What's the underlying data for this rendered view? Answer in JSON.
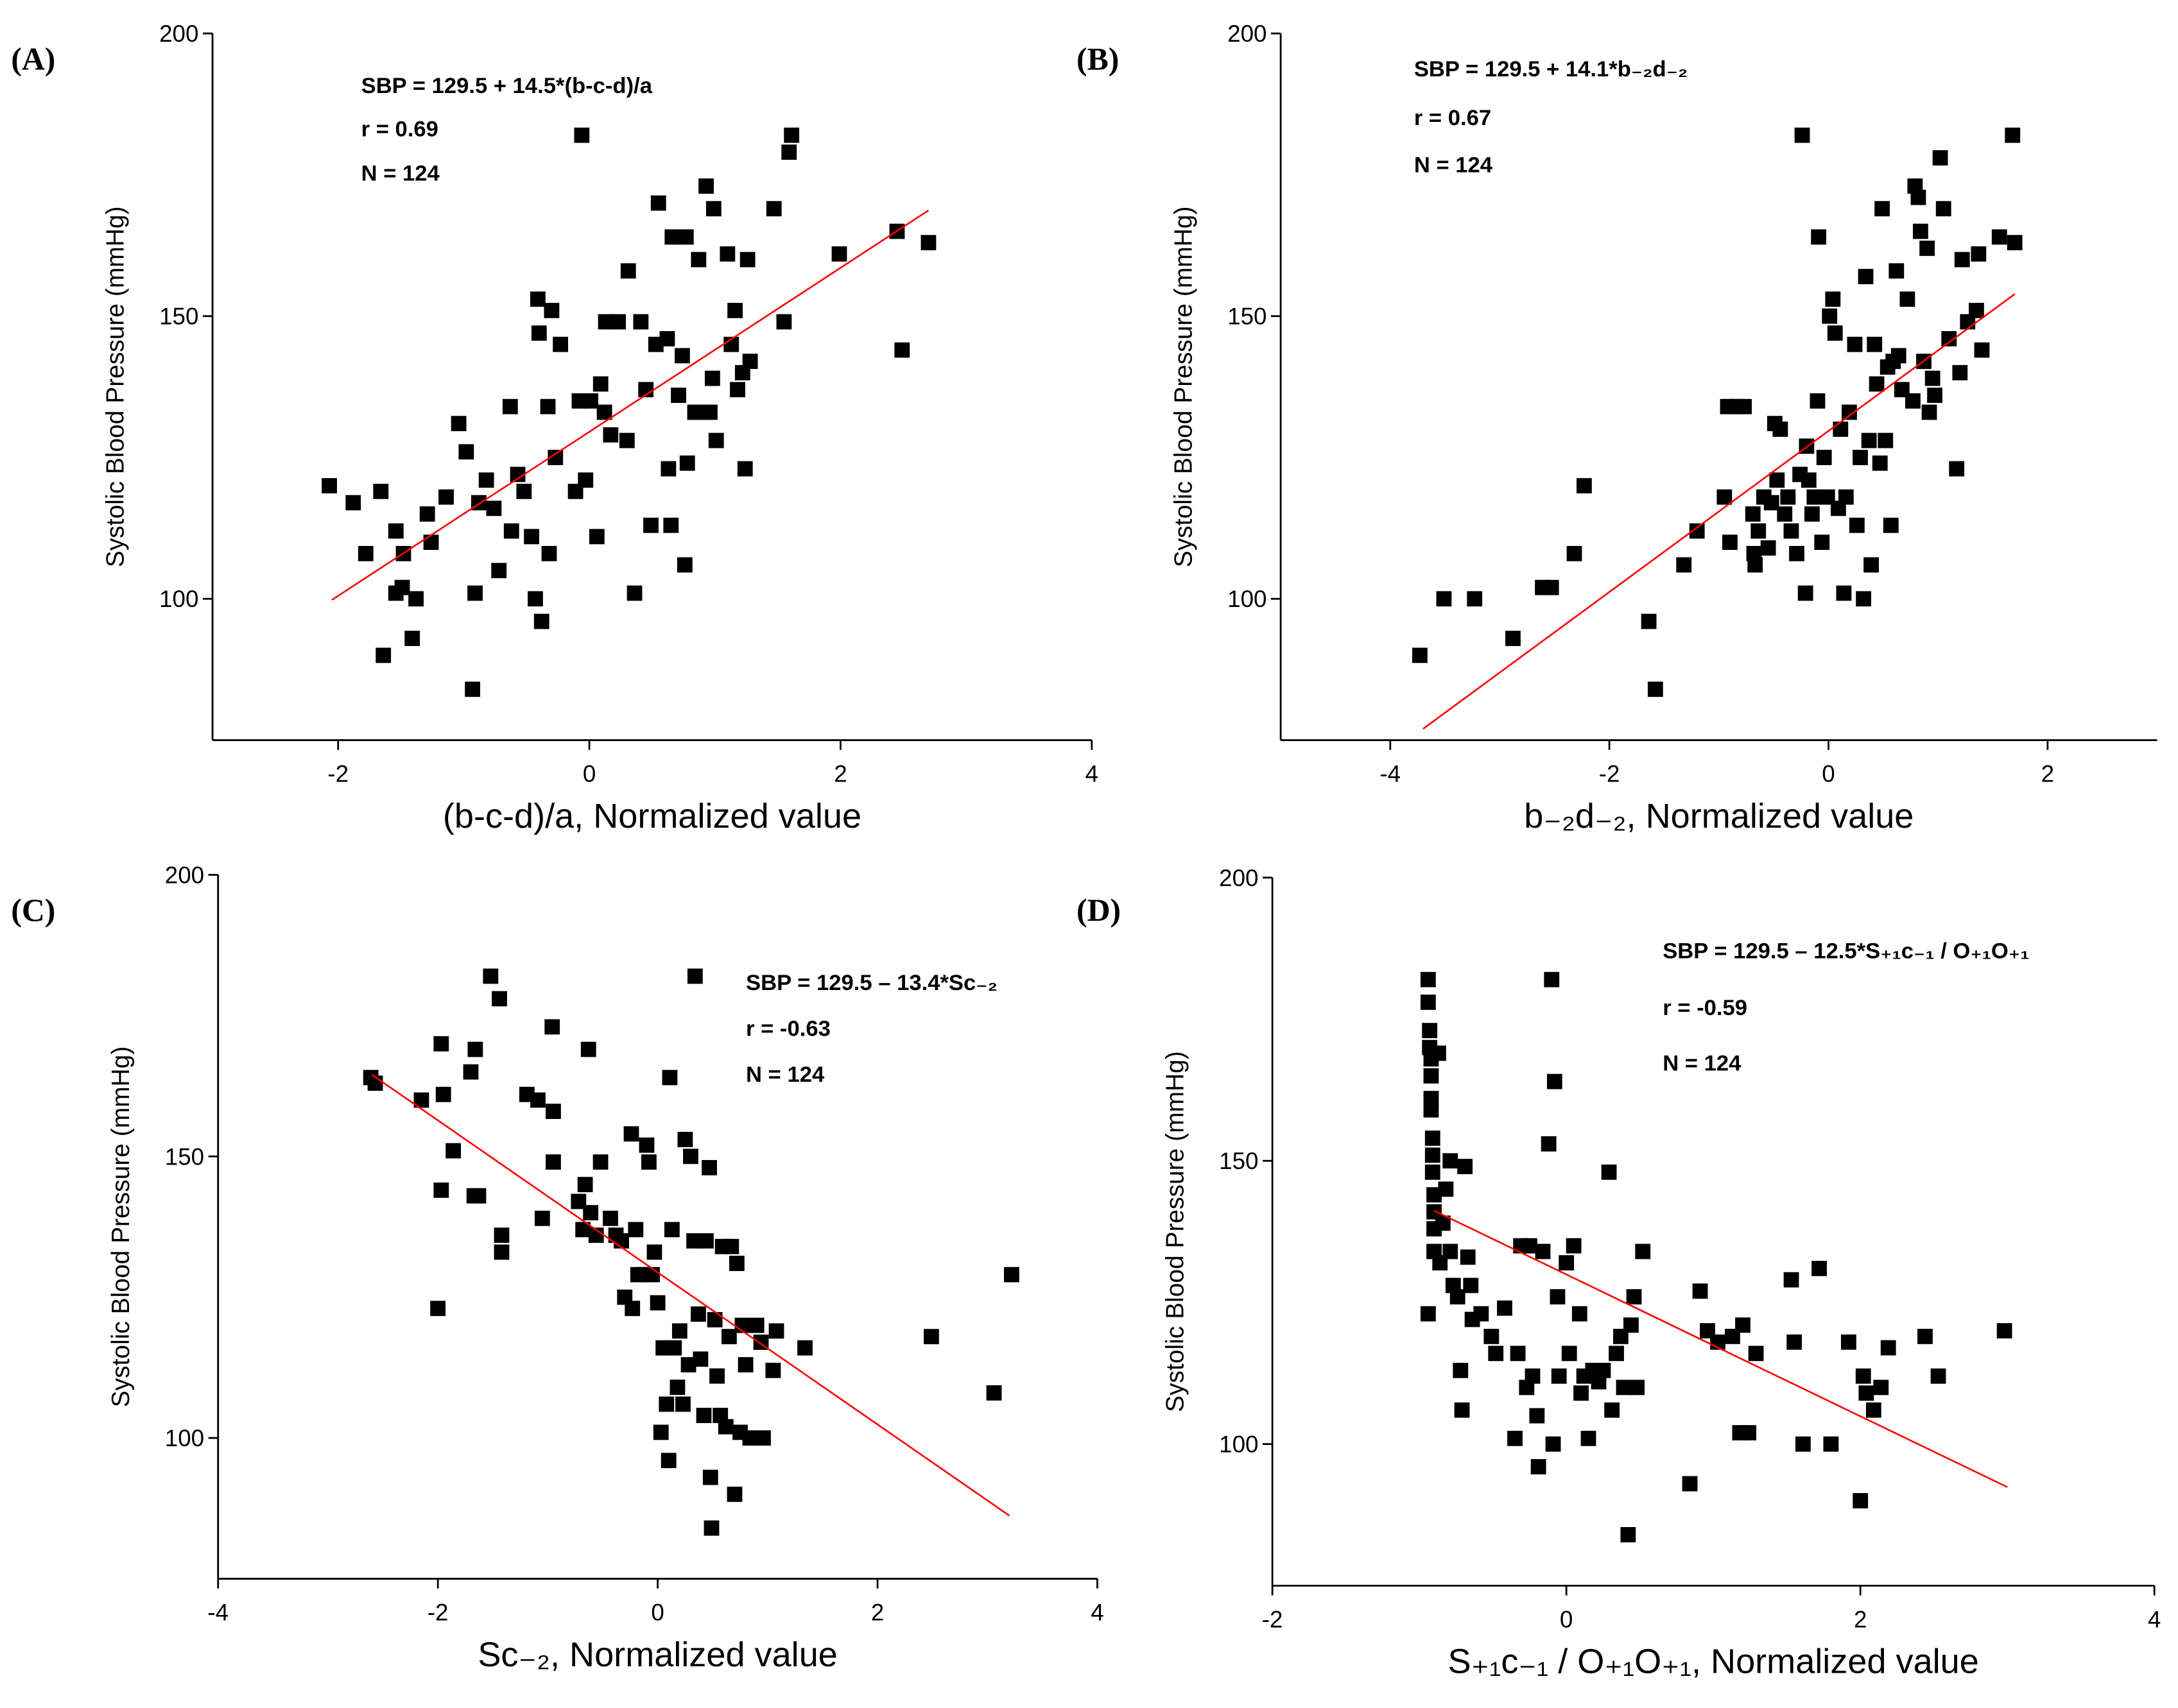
{
  "chart_data": [
    {
      "type": "scatter",
      "label": "(A)",
      "annotations": [
        "SBP = 129.5 + 14.5*(b-c-d)/a",
        "r = 0.69",
        "N = 124"
      ],
      "xlabel": "(b-c-d)/a, Normalized value",
      "ylabel": "Systolic Blood Pressure (mmHg)",
      "xlim": [
        -3,
        4
      ],
      "ylim": [
        75,
        200
      ],
      "xticks": [
        -2,
        0,
        2,
        4
      ],
      "yticks": [
        100,
        150,
        200
      ],
      "color": "#000000",
      "fit_line": {
        "x": [
          -2.05,
          2.7
        ],
        "y": [
          99.8,
          168.7
        ],
        "color": "#ff0000"
      },
      "x": [
        -2.07,
        -1.88,
        -1.78,
        -1.66,
        -1.64,
        -1.54,
        -1.48,
        -1.49,
        -1.54,
        -1.41,
        -1.38,
        -1.29,
        -1.26,
        -1.14,
        -1.04,
        -0.98,
        -0.93,
        -0.91,
        -0.88,
        -0.82,
        -0.76,
        -0.72,
        -0.63,
        -0.62,
        -0.57,
        -0.52,
        -0.46,
        -0.43,
        -0.41,
        -0.4,
        -0.38,
        -0.33,
        -0.32,
        -0.3,
        -0.27,
        -0.23,
        -0.11,
        -0.08,
        -0.06,
        -0.03,
        0.01,
        0.06,
        0.09,
        0.12,
        0.13,
        0.17,
        0.23,
        0.3,
        0.31,
        0.36,
        0.41,
        0.45,
        0.49,
        0.53,
        0.55,
        0.62,
        0.63,
        0.65,
        0.66,
        0.71,
        0.74,
        0.76,
        0.77,
        0.78,
        0.84,
        0.87,
        0.93,
        0.96,
        0.98,
        0.99,
        1.01,
        1.1,
        1.13,
        1.16,
        1.18,
        1.22,
        1.24,
        1.26,
        1.28,
        1.47,
        1.55,
        1.59,
        1.61,
        1.99,
        2.45,
        2.49,
        2.7
      ],
      "y": [
        120,
        117,
        108,
        119,
        90,
        112,
        108,
        102,
        101,
        93,
        100,
        115,
        110,
        118,
        131,
        126,
        84,
        101,
        117,
        121,
        116,
        105,
        134,
        112,
        122,
        119,
        111,
        100,
        153,
        147,
        96,
        134,
        108,
        151,
        125,
        145,
        119,
        135,
        182,
        121,
        135,
        111,
        138,
        133,
        149,
        129,
        149,
        128,
        158,
        101,
        149,
        137,
        113,
        145,
        170,
        146,
        123,
        113,
        164,
        136,
        143,
        106,
        164,
        124,
        133,
        160,
        173,
        133,
        139,
        169,
        128,
        161,
        145,
        151,
        137,
        140,
        123,
        160,
        142,
        169,
        149,
        179,
        182,
        161,
        165,
        144,
        163
      ]
    },
    {
      "type": "scatter",
      "label": "(B)",
      "annotations": [
        "SBP = 129.5 + 14.1*b₋₂d₋₂",
        "r = 0.67",
        "N = 124"
      ],
      "xlabel": "b₋₂d₋₂,  Normalized value",
      "ylabel": "Systolic Blood Pressure (mmHg)",
      "xlim": [
        -5,
        3
      ],
      "ylim": [
        75,
        200
      ],
      "xticks": [
        -4,
        -2,
        0,
        2
      ],
      "yticks": [
        100,
        150,
        200
      ],
      "color": "#000000",
      "fit_line": {
        "x": [
          -3.7,
          1.7
        ],
        "y": [
          77,
          153.9
        ],
        "color": "#ff0000"
      },
      "x": [
        -3.73,
        -3.51,
        -3.23,
        -2.88,
        -2.61,
        -2.53,
        -2.32,
        -2.23,
        -1.64,
        -1.58,
        -1.32,
        -1.2,
        -0.95,
        -0.92,
        -0.84,
        -0.77,
        -0.9,
        -0.69,
        -0.68,
        -0.67,
        -0.64,
        -0.59,
        -0.55,
        -0.52,
        -0.49,
        -0.47,
        -0.44,
        -0.4,
        -0.37,
        -0.34,
        -0.29,
        -0.26,
        -0.24,
        -0.21,
        -0.2,
        -0.18,
        -0.15,
        -0.13,
        -0.1,
        -0.09,
        -0.06,
        -0.04,
        -0.01,
        0.01,
        0.04,
        0.06,
        0.09,
        0.11,
        0.14,
        0.16,
        0.19,
        0.24,
        0.26,
        0.29,
        0.32,
        0.34,
        0.37,
        0.39,
        0.42,
        0.44,
        0.47,
        0.49,
        0.52,
        0.54,
        0.57,
        0.59,
        0.62,
        0.64,
        0.67,
        0.72,
        0.77,
        0.79,
        0.82,
        0.84,
        0.87,
        0.9,
        0.92,
        0.95,
        0.97,
        1.02,
        1.05,
        1.1,
        1.17,
        1.2,
        1.22,
        1.27,
        1.35,
        1.37,
        1.4,
        1.56,
        1.68,
        1.7
      ],
      "y": [
        90,
        100,
        100,
        93,
        102,
        102,
        108,
        120,
        96,
        84,
        106,
        112,
        118,
        134,
        134,
        134,
        110,
        115,
        108,
        106,
        112,
        118,
        109,
        117,
        131,
        121,
        130,
        115,
        118,
        112,
        108,
        122,
        182,
        101,
        127,
        121,
        115,
        118,
        135,
        164,
        110,
        125,
        118,
        150,
        153,
        147,
        116,
        130,
        101,
        118,
        133,
        145,
        113,
        125,
        100,
        157,
        128,
        106,
        145,
        138,
        124,
        169,
        128,
        141,
        113,
        142,
        158,
        143,
        137,
        153,
        135,
        173,
        171,
        165,
        142,
        162,
        133,
        139,
        136,
        178,
        169,
        146,
        123,
        140,
        160,
        149,
        151,
        161,
        144,
        164,
        182,
        163
      ]
    },
    {
      "type": "scatter",
      "label": "(C)",
      "annotations": [
        "SBP = 129.5 – 13.4*Sc₋₂",
        "r = -0.63",
        "N = 124"
      ],
      "xlabel": "Sc₋₂,  Normalized value",
      "ylabel": "Systolic Blood Pressure (mmHg)",
      "xlim": [
        -4,
        4
      ],
      "ylim": [
        75,
        200
      ],
      "xticks": [
        -4,
        -2,
        0,
        2,
        4
      ],
      "yticks": [
        100,
        150,
        200
      ],
      "color": "#000000",
      "fit_line": {
        "x": [
          -2.6,
          3.2
        ],
        "y": [
          164.5,
          86.2
        ],
        "color": "#ff0000"
      },
      "x": [
        -2.61,
        -2.57,
        -2.15,
        -1.97,
        -1.95,
        -1.97,
        -2.0,
        -1.86,
        -1.7,
        -1.66,
        -1.67,
        -1.63,
        -1.52,
        -1.44,
        -1.42,
        -1.42,
        -1.19,
        -1.09,
        -1.05,
        -0.96,
        -0.95,
        -0.95,
        -0.72,
        -0.68,
        -0.66,
        -0.63,
        -0.61,
        -0.56,
        -0.52,
        -0.43,
        -0.38,
        -0.33,
        -0.3,
        -0.24,
        -0.23,
        -0.2,
        -0.18,
        -0.13,
        -0.1,
        -0.08,
        -0.05,
        -0.03,
        0,
        0.03,
        0.05,
        0.08,
        0.1,
        0.11,
        0.13,
        0.15,
        0.18,
        0.2,
        0.23,
        0.25,
        0.28,
        0.3,
        0.33,
        0.34,
        0.37,
        0.39,
        0.42,
        0.44,
        0.47,
        0.48,
        0.49,
        0.52,
        0.54,
        0.57,
        0.59,
        0.62,
        0.65,
        0.67,
        0.7,
        0.72,
        0.75,
        0.77,
        0.8,
        0.84,
        0.9,
        0.94,
        0.96,
        1.08,
        1.05,
        1.34,
        2.49,
        3.06,
        3.22
      ],
      "y": [
        164,
        163,
        160,
        170,
        161,
        144,
        123,
        151,
        165,
        169,
        143,
        143,
        182,
        178,
        136,
        133,
        161,
        160,
        139,
        173,
        158,
        149,
        142,
        137,
        145,
        169,
        140,
        136,
        149,
        139,
        136,
        135,
        125,
        154,
        123,
        137,
        129,
        129,
        152,
        149,
        129,
        133,
        124,
        101,
        116,
        106,
        96,
        164,
        137,
        116,
        109,
        119,
        106,
        153,
        113,
        150,
        135,
        182,
        122,
        114,
        104,
        135,
        148,
        93,
        84,
        121,
        111,
        104,
        134,
        102,
        118,
        134,
        90,
        131,
        101,
        120,
        113,
        100,
        120,
        117,
        100,
        119,
        112,
        116,
        118,
        108,
        129
      ]
    },
    {
      "type": "scatter",
      "label": "(D)",
      "annotations": [
        "SBP = 129.5 – 12.5*S₊₁c₋₁ / O₊₁O₊₁",
        "r = -0.59",
        "N = 124"
      ],
      "xlabel": "S₊₁c₋₁ / O₊₁O₊₁,  Normalized value",
      "ylabel": "Systolic Blood Pressure (mmHg)",
      "xlim": [
        -2,
        4
      ],
      "ylim": [
        75,
        200
      ],
      "xticks": [
        -2,
        0,
        2,
        4
      ],
      "yticks": [
        100,
        150,
        200
      ],
      "color": "#000000",
      "fit_line": {
        "x": [
          -0.9,
          3.0
        ],
        "y": [
          141.2,
          92.4
        ],
        "color": "#ff0000"
      },
      "x": [
        -0.94,
        -0.94,
        -0.93,
        -0.93,
        -0.92,
        -0.92,
        -0.92,
        -0.92,
        -0.91,
        -0.91,
        -0.91,
        -0.9,
        -0.9,
        -0.9,
        -0.9,
        -0.94,
        -0.87,
        -0.86,
        -0.84,
        -0.82,
        -0.79,
        -0.79,
        -0.77,
        -0.74,
        -0.72,
        -0.71,
        -0.69,
        -0.67,
        -0.65,
        -0.64,
        -0.58,
        -0.51,
        -0.48,
        -0.42,
        -0.35,
        -0.33,
        -0.31,
        -0.27,
        -0.25,
        -0.23,
        -0.2,
        -0.19,
        -0.16,
        -0.12,
        -0.1,
        -0.09,
        -0.08,
        -0.06,
        -0.05,
        0,
        0.02,
        0.05,
        0.09,
        0.1,
        0.12,
        0.15,
        0.18,
        0.22,
        0.25,
        0.29,
        0.31,
        0.34,
        0.37,
        0.39,
        0.42,
        0.44,
        0.46,
        0.48,
        0.52,
        0.84,
        0.91,
        0.96,
        1.03,
        1.13,
        1.18,
        1.2,
        1.24,
        1.29,
        1.53,
        1.55,
        1.61,
        1.72,
        1.8,
        1.92,
        2.0,
        2.02,
        2.04,
        2.09,
        2.14,
        2.19,
        2.44,
        2.53,
        2.98
      ],
      "y": [
        182,
        178,
        173,
        170,
        168,
        165,
        161,
        159,
        154,
        151,
        148,
        144,
        141,
        138,
        134,
        123,
        169,
        132,
        139,
        145,
        150,
        134,
        128,
        126,
        113,
        106,
        149,
        133,
        128,
        122,
        123,
        119,
        116,
        124,
        101,
        116,
        135,
        110,
        135,
        112,
        105,
        96,
        134,
        153,
        182,
        100,
        164,
        126,
        112,
        132,
        116,
        135,
        123,
        109,
        112,
        101,
        113,
        111,
        113,
        148,
        106,
        116,
        119,
        110,
        84,
        121,
        126,
        110,
        134,
        93,
        127,
        120,
        118,
        119,
        102,
        121,
        102,
        116,
        129,
        118,
        100,
        131,
        100,
        118,
        90,
        112,
        109,
        106,
        110,
        117,
        119,
        112,
        120
      ]
    }
  ]
}
